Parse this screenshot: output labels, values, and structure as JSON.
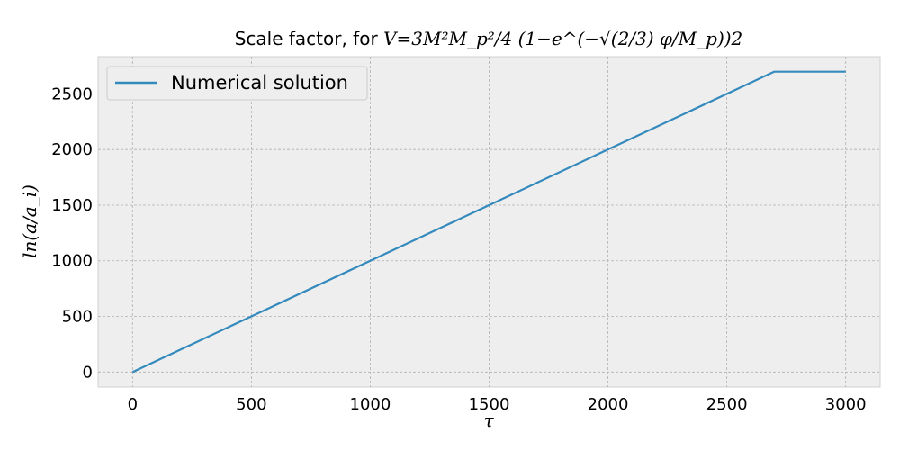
{
  "chart_data": {
    "type": "line",
    "title": "Scale factor, for V=3M²M_p²/4 (1−e^(−√(2/3) φ/M_p))2",
    "title_prefix": "Scale factor, for ",
    "title_formula": "V=3M²M_p²/4 (1−e^(−√(2/3) φ/M_p))2",
    "xlabel": "τ",
    "ylabel": "ln(a/a_i)",
    "xlim": [
      -145,
      3145
    ],
    "ylim": [
      -135,
      2835
    ],
    "x_ticks": [
      0,
      500,
      1000,
      1500,
      2000,
      2500,
      3000
    ],
    "y_ticks": [
      0,
      500,
      1000,
      1500,
      2000,
      2500
    ],
    "grid": true,
    "legend_position": "upper-left",
    "series": [
      {
        "name": "Numerical solution",
        "color": "#348abd",
        "x": [
          0,
          500,
          1000,
          1500,
          2000,
          2500,
          2700,
          3000
        ],
        "y": [
          0,
          500,
          1000,
          1500,
          2000,
          2500,
          2700,
          2700
        ]
      }
    ]
  },
  "colors": {
    "plot_background": "#eeeeee",
    "grid": "#b0b0b0",
    "line": "#348abd"
  }
}
